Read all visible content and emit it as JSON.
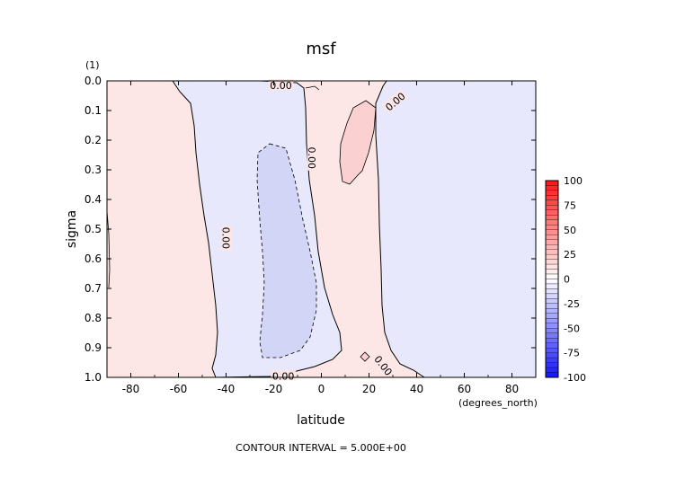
{
  "chart_data": {
    "type": "contour",
    "title": "msf",
    "xlabel": "latitude",
    "ylabel": "sigma",
    "x_units": "(degrees_north)",
    "y_units": "(1)",
    "xlim": [
      -90,
      90
    ],
    "ylim": [
      0.0,
      1.0
    ],
    "y_inverted": true,
    "x_ticks": [
      -80,
      -60,
      -40,
      -20,
      0,
      20,
      40,
      60,
      80
    ],
    "y_ticks": [
      0.0,
      0.1,
      0.2,
      0.3,
      0.4,
      0.5,
      0.6,
      0.7,
      0.8,
      0.9,
      1.0
    ],
    "contour_labels": [
      {
        "text": "0.00",
        "lat": -17,
        "sigma": 0.015,
        "rot": 0
      },
      {
        "text": "0.00",
        "lat": 31,
        "sigma": 0.07,
        "rot": -40
      },
      {
        "text": "0.00",
        "lat": -4,
        "sigma": 0.26,
        "rot": 90
      },
      {
        "text": "0.00",
        "lat": -40,
        "sigma": 0.53,
        "rot": 90
      },
      {
        "text": "0.00",
        "lat": 26,
        "sigma": 0.96,
        "rot": 52
      },
      {
        "text": "0.00",
        "lat": -16,
        "sigma": 0.995,
        "rot": 0
      }
    ],
    "colorbar": {
      "ticks": [
        100,
        75,
        50,
        25,
        0,
        -25,
        -50,
        -75,
        -100
      ],
      "min": -100,
      "max": 100,
      "step": 5
    },
    "footer": "CONTOUR INTERVAL = 5.000E+00",
    "colors": {
      "positive_fill": "#fce6e6",
      "negative_fill": "#e7e8fb",
      "strong_negative_fill": "#d2d5f6",
      "strong_positive_fill": "#fad0d0"
    }
  }
}
